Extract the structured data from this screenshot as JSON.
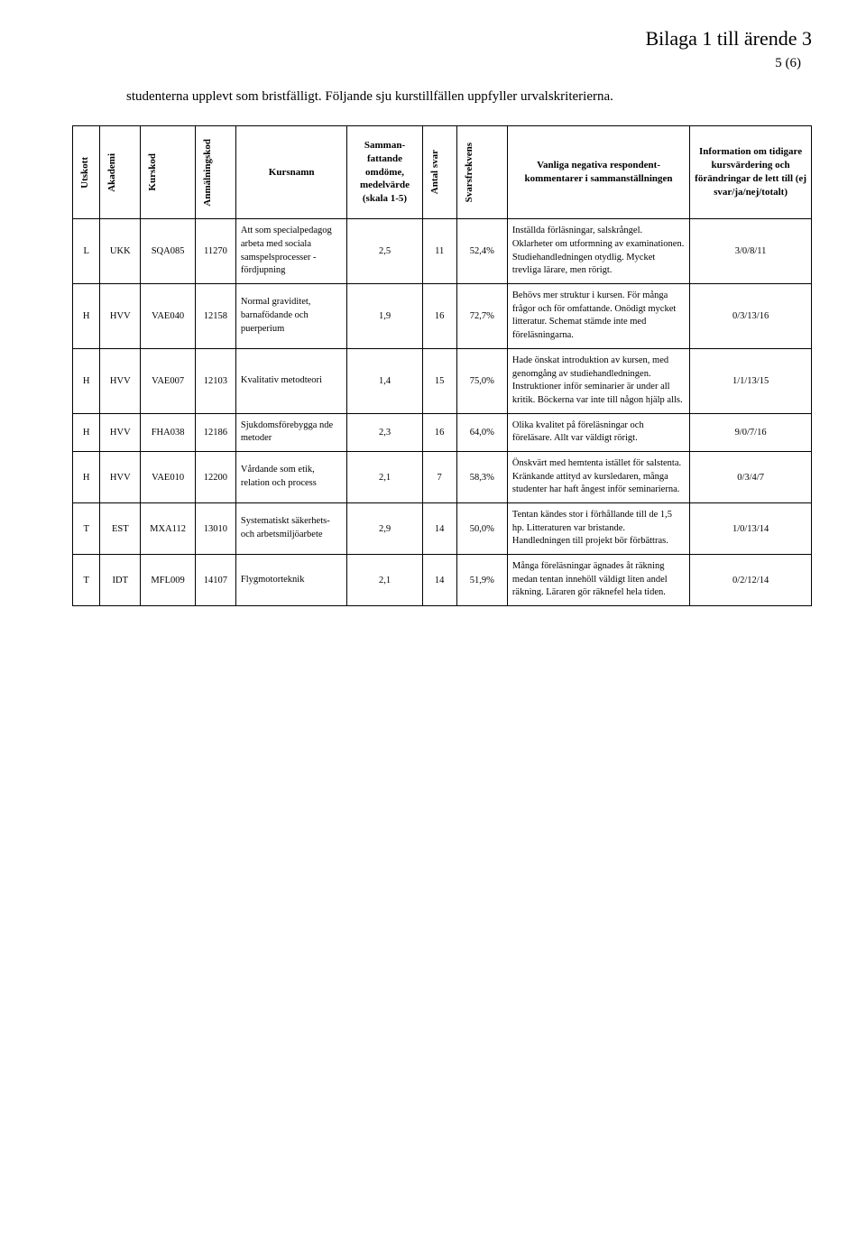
{
  "header": {
    "title": "Bilaga 1 till ärende 3",
    "page_number": "5 (6)"
  },
  "intro": "studenterna upplevt som bristfälligt. Följande sju kurstillfällen uppfyller urvalskriterierna.",
  "table": {
    "columns": [
      "Utskott",
      "Akademi",
      "Kurskod",
      "Anmälningskod",
      "Kursnamn",
      "Samman­fattande omdöme, medelvärde (skala 1-5)",
      "Antal svar",
      "Svarsfrekvens",
      "Vanliga negativa respondent­kommentarer i sammanställningen",
      "Information om tidigare kurs­värdering och förändringar de lett till (ej svar/ja/nej/totalt)"
    ],
    "rows": [
      {
        "utskott": "L",
        "akademi": "UKK",
        "kurskod": "SQA085",
        "anm": "11270",
        "kursnamn": "Att som specialpedagog arbeta med sociala samspelsprocesser - fördjupning",
        "medel": "2,5",
        "antal": "11",
        "frekvens": "52,4%",
        "kommentar": "Inställda förläsningar, salskrångel. Oklarheter om utformning av examinationen. Studiehandledningen otydlig. Mycket trevliga lärare, men rörigt.",
        "info": "3/0/8/11"
      },
      {
        "utskott": "H",
        "akademi": "HVV",
        "kurskod": "VAE040",
        "anm": "12158",
        "kursnamn": "Normal graviditet, barnafödande och puerperium",
        "medel": "1,9",
        "antal": "16",
        "frekvens": "72,7%",
        "kommentar": "Behövs mer struktur i kursen. För många frågor och för omfattande. Onödigt mycket litteratur. Schemat stämde inte med föreläsningarna.",
        "info": "0/3/13/16"
      },
      {
        "utskott": "H",
        "akademi": "HVV",
        "kurskod": "VAE007",
        "anm": "12103",
        "kursnamn": "Kvalitativ metodteori",
        "medel": "1,4",
        "antal": "15",
        "frekvens": "75,0%",
        "kommentar": "Hade önskat introduktion av kursen, med genomgång av studiehandledningen. Instruktioner inför seminarier är under all kritik. Böckerna var inte till någon hjälp alls.",
        "info": "1/1/13/15"
      },
      {
        "utskott": "H",
        "akademi": "HVV",
        "kurskod": "FHA038",
        "anm": "12186",
        "kursnamn": "Sjukdomsförebygga nde metoder",
        "medel": "2,3",
        "antal": "16",
        "frekvens": "64,0%",
        "kommentar": "Olika kvalitet på föreläsningar och föreläsare. Allt var väldigt rörigt.",
        "info": "9/0/7/16"
      },
      {
        "utskott": "H",
        "akademi": "HVV",
        "kurskod": "VAE010",
        "anm": "12200",
        "kursnamn": "Vårdande som etik, relation och process",
        "medel": "2,1",
        "antal": "7",
        "frekvens": "58,3%",
        "kommentar": "Önskvärt med hemtenta istället för salstenta. Kränkande attityd av kursledaren, många studenter har haft ångest inför seminarierna.",
        "info": "0/3/4/7"
      },
      {
        "utskott": "T",
        "akademi": "EST",
        "kurskod": "MXA112",
        "anm": "13010",
        "kursnamn": "Systematiskt säkerhets- och arbetsmiljöarbete",
        "medel": "2,9",
        "antal": "14",
        "frekvens": "50,0%",
        "kommentar": "Tentan kändes stor i förhållande till de 1,5 hp. Litteraturen var bristande. Handledningen till projekt bör förbättras.",
        "info": "1/0/13/14"
      },
      {
        "utskott": "T",
        "akademi": "IDT",
        "kurskod": "MFL009",
        "anm": "14107",
        "kursnamn": "Flygmotorteknik",
        "medel": "2,1",
        "antal": "14",
        "frekvens": "51,9%",
        "kommentar": "Många föreläsningar ägnades åt räkning medan tentan innehöll väldigt liten andel räkning. Läraren gör räknefel hela tiden.",
        "info": "0/2/12/14"
      }
    ]
  },
  "style": {
    "font_family": "Times New Roman",
    "title_fontsize": 22,
    "intro_fontsize": 15,
    "table_fontsize": 10.5,
    "text_color": "#000000",
    "background_color": "#ffffff",
    "border_color": "#000000"
  }
}
